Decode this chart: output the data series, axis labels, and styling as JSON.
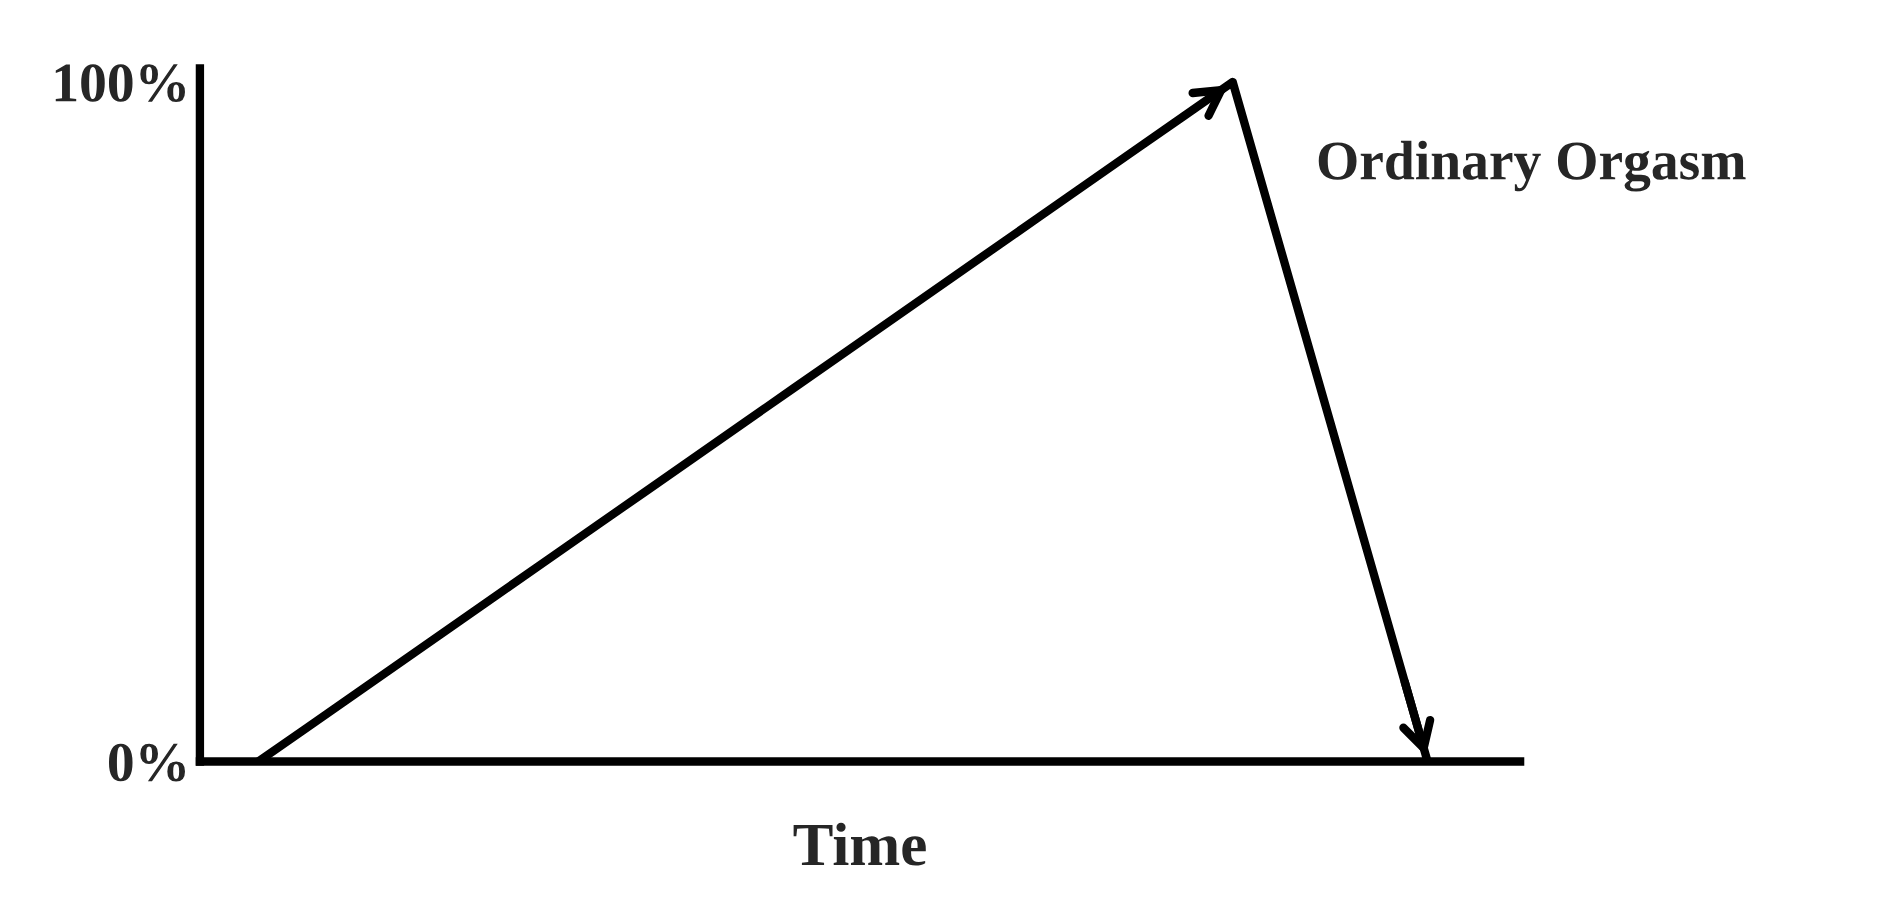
{
  "chart_data": {
    "type": "line",
    "xlabel": "Time",
    "categories": [
      null,
      null,
      null,
      null,
      null,
      null,
      null,
      null,
      null,
      null,
      null,
      null,
      null,
      null,
      null,
      null,
      null,
      null,
      null,
      null,
      null,
      null,
      null,
      null,
      null
    ],
    "series": [
      {
        "name": "Ordinary Orgasm",
        "color": "#000000",
        "values": [
          0,
          5,
          10,
          15,
          20,
          25,
          30,
          35,
          40,
          45,
          50,
          55,
          60,
          65,
          70,
          75,
          80,
          85,
          90,
          95,
          100,
          75,
          50,
          25,
          0
        ]
      }
    ],
    "ylim": [
      0,
      102
    ],
    "yticks": [
      {
        "value": 0,
        "label": "0%"
      },
      {
        "value": 100,
        "label": "100%"
      }
    ],
    "tick_labels": "y",
    "grid": false,
    "legend": false,
    "marker": "none",
    "line_style": "solid"
  }
}
